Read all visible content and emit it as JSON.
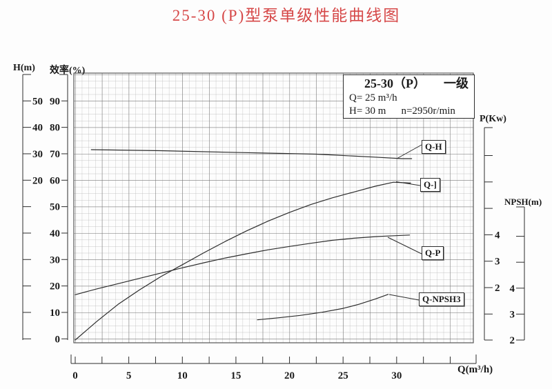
{
  "title": "25-30 (P)型泵单级性能曲线图",
  "legend": {
    "model": "25-30（P）",
    "stage": "一级",
    "flow": "Q= 25 m³/h",
    "head": "H= 30 m",
    "speed": "n=2950r/min"
  },
  "axes": {
    "h": {
      "label": "H(m)",
      "ticks": [
        "50",
        "40",
        "30",
        "20"
      ]
    },
    "eff": {
      "label": "效率(%)",
      "ticks": [
        "90",
        "80",
        "70",
        "60",
        "50",
        "40",
        "30",
        "20",
        "10",
        "0"
      ]
    },
    "x": {
      "label": "Q(m³/h)",
      "tick_labels": [
        "0",
        "5",
        "10",
        "15",
        "20",
        "25",
        "30"
      ]
    },
    "p": {
      "label": "P(Kw)",
      "ticks": [
        "4",
        "3",
        "2"
      ]
    },
    "npsh": {
      "label": "NPSH(m)",
      "ticks": [
        "4",
        "3",
        "2"
      ]
    }
  },
  "curve_labels": {
    "qh": "Q-H",
    "qeff": "Q-]",
    "qp": "Q-P",
    "qnpsh": "Q-NPSH3"
  },
  "colors": {
    "title_red": "#d64848",
    "curve": "#2b2b2b",
    "grid_minor": "#b4b4b4",
    "grid_major": "#6e6e6e",
    "axis": "#2b2b2b"
  },
  "chart_data": {
    "type": "line",
    "title": "25-30 (P) single-stage pump performance curves",
    "xlabel": "Q(m³/h)",
    "x_range": [
      0,
      35
    ],
    "x_major_tick_step": 5,
    "x_minor_tick_step": 2.5,
    "grid": true,
    "legend_position": "inline-boxes-right",
    "rated_point": {
      "Q": "25 m³/h",
      "H": "30 m",
      "n": "2950r/min",
      "stage": "一级"
    },
    "y_axes": [
      {
        "id": "H",
        "label": "H(m)",
        "labeled_ticks": [
          50,
          40,
          30,
          20
        ]
      },
      {
        "id": "eff",
        "label": "效率(%)",
        "labeled_ticks": [
          90,
          80,
          70,
          60,
          50,
          40,
          30,
          20,
          10,
          0
        ]
      },
      {
        "id": "P",
        "label": "P(Kw)",
        "labeled_ticks": [
          4,
          3,
          2
        ]
      },
      {
        "id": "NPSH",
        "label": "NPSH(m)",
        "labeled_ticks": [
          4,
          3,
          2
        ]
      }
    ],
    "series": [
      {
        "name": "Q-H",
        "axis": "H",
        "units": "m",
        "points": [
          [
            1.5,
            31.5
          ],
          [
            8,
            31.1
          ],
          [
            15.5,
            30.4
          ],
          [
            22.5,
            29.8
          ],
          [
            27.8,
            28.7
          ],
          [
            30.5,
            28.1
          ],
          [
            31.4,
            28.1
          ]
        ]
      },
      {
        "name": "Q-]",
        "axis": "eff",
        "units": "%",
        "points": [
          [
            0,
            0
          ],
          [
            2,
            7
          ],
          [
            4,
            13.5
          ],
          [
            6,
            19
          ],
          [
            8,
            24
          ],
          [
            10,
            28.5
          ],
          [
            12,
            33
          ],
          [
            14,
            37.3
          ],
          [
            16,
            41.3
          ],
          [
            18,
            45
          ],
          [
            20,
            48.3
          ],
          [
            22,
            51.3
          ],
          [
            24,
            53.8
          ],
          [
            26,
            56
          ],
          [
            28,
            58.2
          ],
          [
            29.7,
            59.7
          ],
          [
            31.3,
            59.4
          ]
        ]
      },
      {
        "name": "Q-P",
        "axis": "P",
        "units": "Kw",
        "points": [
          [
            0,
            1.73
          ],
          [
            2,
            1.95
          ],
          [
            4,
            2.15
          ],
          [
            6,
            2.35
          ],
          [
            8,
            2.55
          ],
          [
            10,
            2.75
          ],
          [
            12,
            2.94
          ],
          [
            14,
            3.12
          ],
          [
            16,
            3.28
          ],
          [
            18,
            3.43
          ],
          [
            20,
            3.56
          ],
          [
            22,
            3.68
          ],
          [
            24,
            3.79
          ],
          [
            26,
            3.87
          ],
          [
            28,
            3.93
          ],
          [
            29,
            3.95
          ],
          [
            31.2,
            3.99
          ]
        ]
      },
      {
        "name": "Q-NPSH3",
        "axis": "NPSH",
        "units": "m",
        "points": [
          [
            17,
            2.78
          ],
          [
            19,
            2.86
          ],
          [
            21,
            2.95
          ],
          [
            23,
            3.07
          ],
          [
            25,
            3.22
          ],
          [
            26.5,
            3.38
          ],
          [
            28,
            3.58
          ],
          [
            29.2,
            3.76
          ]
        ]
      }
    ]
  }
}
